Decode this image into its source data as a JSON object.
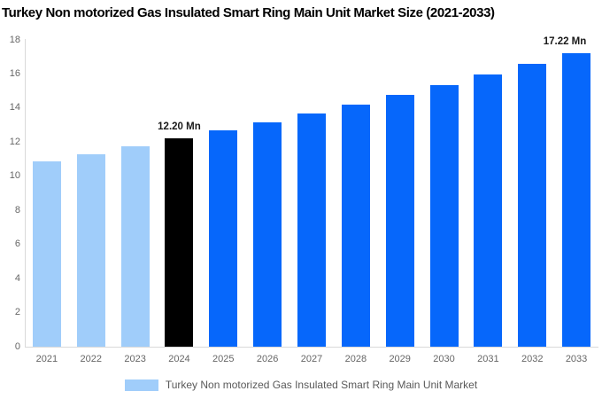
{
  "chart_data": {
    "type": "bar",
    "title": "Turkey Non motorized Gas Insulated Smart Ring Main Unit Market Size (2021-2033)",
    "categories": [
      "2021",
      "2022",
      "2023",
      "2024",
      "2025",
      "2026",
      "2027",
      "2028",
      "2029",
      "2030",
      "2031",
      "2032",
      "2033"
    ],
    "values": [
      10.88,
      11.3,
      11.74,
      12.2,
      12.68,
      13.17,
      13.69,
      14.22,
      14.78,
      15.36,
      15.96,
      16.58,
      17.22
    ],
    "unit": "Mn",
    "xlabel": "",
    "ylabel": "",
    "ylim": [
      0,
      18
    ],
    "yticks": [
      0,
      2,
      4,
      6,
      8,
      10,
      12,
      14,
      16,
      18
    ],
    "grid": false,
    "background": "#FFFFFF",
    "bar_colors": [
      "#A0CDFA",
      "#A0CDFA",
      "#A0CDFA",
      "#000000",
      "#0667FB",
      "#0667FB",
      "#0667FB",
      "#0667FB",
      "#0667FB",
      "#0667FB",
      "#0667FB",
      "#0667FB",
      "#0667FB"
    ],
    "annotations": [
      {
        "category": "2024",
        "text": "12.20 Mn"
      },
      {
        "category": "2033",
        "text": "17.22 Mn"
      }
    ],
    "legend": {
      "position": "bottom",
      "label": "Turkey Non motorized Gas Insulated Smart Ring Main Unit Market",
      "swatch_color": "#A0CDFA"
    },
    "colors": {
      "historical": "#A0CDFA",
      "highlight": "#000000",
      "forecast": "#0667FB",
      "axis_line": "#D9D9D9",
      "tick_text": "#666666",
      "title_text": "#000000",
      "annotation_text": "#1A1A1A",
      "legend_text": "#595959"
    }
  }
}
